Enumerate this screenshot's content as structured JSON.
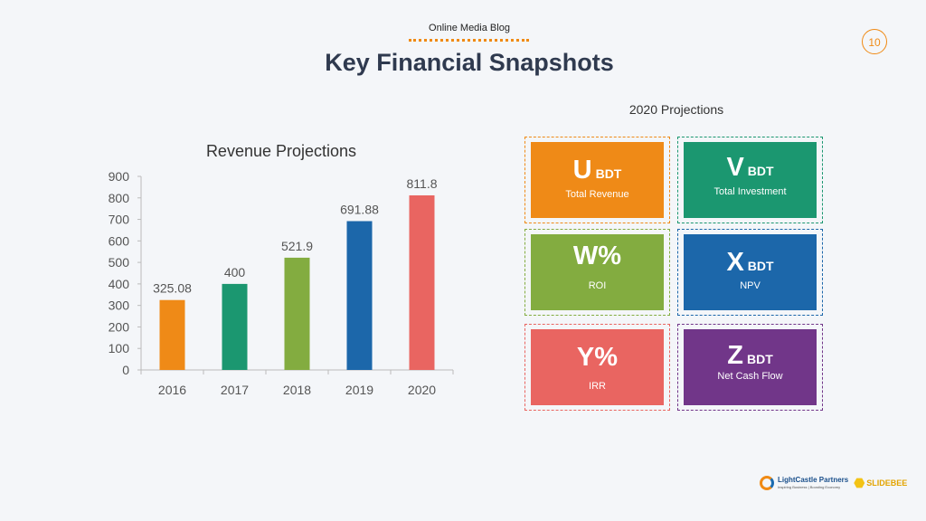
{
  "header": {
    "blog": "Online Media Blog",
    "title": "Key Financial Snapshots",
    "page_number": "10"
  },
  "projections_title": "2020 Projections",
  "tiles": [
    {
      "letter": "U",
      "unit": "BDT",
      "label": "Total Revenue",
      "color": "#ef8a17"
    },
    {
      "letter": "V",
      "unit": "BDT",
      "label": "Total Investment",
      "color": "#1b9770"
    },
    {
      "letter": "W%",
      "unit": "",
      "label": "ROI",
      "color": "#83ac40"
    },
    {
      "letter": "X",
      "unit": "BDT",
      "label": "NPV",
      "color": "#1c67aa"
    },
    {
      "letter": "Y%",
      "unit": "",
      "label": "IRR",
      "color": "#e96561"
    },
    {
      "letter": "Z",
      "unit": "BDT",
      "label": "Net Cash Flow",
      "color": "#713689"
    }
  ],
  "chart_data": {
    "type": "bar",
    "title": "Revenue Projections",
    "categories": [
      "2016",
      "2017",
      "2018",
      "2019",
      "2020"
    ],
    "values": [
      325.08,
      400,
      521.9,
      691.88,
      811.8
    ],
    "value_labels": [
      "325.08",
      "400",
      "521.9",
      "691.88",
      "811.8"
    ],
    "colors": [
      "#ef8a17",
      "#1b9770",
      "#83ac40",
      "#1c67aa",
      "#e96561"
    ],
    "yticks": [
      0,
      100,
      200,
      300,
      400,
      500,
      600,
      700,
      800,
      900
    ],
    "ylim": [
      0,
      900
    ],
    "xlabel": "",
    "ylabel": ""
  },
  "logo": {
    "brand": "LightCastle Partners",
    "tagline": "Inspiring Business | Boosting Economy",
    "partner": "SLIDEBEE"
  }
}
